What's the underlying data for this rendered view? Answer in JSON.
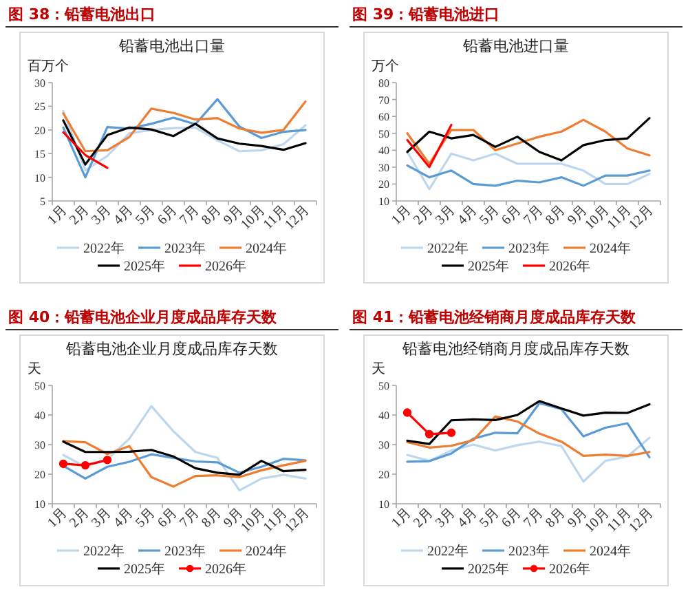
{
  "chart_data": [
    {
      "type": "line",
      "title": "图 38：铅蓄电池出口",
      "subtitle": "铅蓄电池出口量",
      "ylabel": "百万个",
      "categories": [
        "1月",
        "2月",
        "3月",
        "4月",
        "5月",
        "6月",
        "7月",
        "8月",
        "9月",
        "10月",
        "11月",
        "12月"
      ],
      "ylim": [
        5,
        30
      ],
      "yticks": [
        5,
        10,
        15,
        20,
        25,
        30
      ],
      "legend": "bottom",
      "series": [
        {
          "name": "2022年",
          "color": "#bdd7ee",
          "values": [
            24,
            11.5,
            14.5,
            19.3,
            20,
            20.4,
            20.5,
            17.8,
            15.5,
            15.7,
            17,
            21
          ]
        },
        {
          "name": "2023年",
          "color": "#5b9bd5",
          "values": [
            20.5,
            10,
            20.6,
            20.3,
            21.3,
            22.6,
            21.2,
            26.5,
            20.7,
            18.3,
            19.6,
            20
          ]
        },
        {
          "name": "2024年",
          "color": "#ed7d31",
          "values": [
            23.5,
            15.5,
            15.7,
            18.5,
            24.5,
            23.6,
            22.2,
            22.5,
            20.3,
            19.4,
            20,
            26
          ]
        },
        {
          "name": "2025年",
          "color": "#000000",
          "values": [
            22,
            12.7,
            18.9,
            20.5,
            20.1,
            18.7,
            21.3,
            18.2,
            17.1,
            16.6,
            15.8,
            17.2
          ]
        },
        {
          "name": "2026年",
          "color": "#ff0000",
          "values": [
            19.5,
            14.7,
            12,
            null,
            null,
            null,
            null,
            null,
            null,
            null,
            null,
            null
          ]
        }
      ]
    },
    {
      "type": "line",
      "title": "图 39：铅蓄电池进口",
      "subtitle": "铅蓄电池进口量",
      "ylabel": "万个",
      "categories": [
        "1月",
        "2月",
        "3月",
        "4月",
        "5月",
        "6月",
        "7月",
        "8月",
        "9月",
        "10月",
        "11月",
        "12月"
      ],
      "ylim": [
        10,
        80
      ],
      "yticks": [
        10,
        20,
        30,
        40,
        50,
        60,
        70,
        80
      ],
      "legend": "bottom",
      "series": [
        {
          "name": "2022年",
          "color": "#bdd7ee",
          "values": [
            39,
            17,
            38,
            34,
            38,
            32,
            32,
            32,
            28,
            20,
            20,
            26
          ]
        },
        {
          "name": "2023年",
          "color": "#5b9bd5",
          "values": [
            31,
            24,
            28,
            20,
            19,
            22,
            21,
            24,
            19,
            25,
            25,
            28
          ]
        },
        {
          "name": "2024年",
          "color": "#ed7d31",
          "values": [
            50,
            32,
            52,
            52,
            40,
            44,
            48,
            51,
            58,
            51,
            41,
            37
          ]
        },
        {
          "name": "2025年",
          "color": "#000000",
          "values": [
            39,
            51,
            47,
            49,
            42,
            48,
            39,
            34,
            43,
            46,
            47,
            59
          ]
        },
        {
          "name": "2026年",
          "color": "#ff0000",
          "values": [
            46,
            30,
            55,
            null,
            null,
            null,
            null,
            null,
            null,
            null,
            null,
            null
          ]
        }
      ]
    },
    {
      "type": "line",
      "title": "图 40：铅蓄电池企业月度成品库存天数",
      "subtitle": "铅蓄电池企业月度成品库存天数",
      "ylabel": "天",
      "categories": [
        "1月",
        "2月",
        "3月",
        "4月",
        "5月",
        "6月",
        "7月",
        "8月",
        "9月",
        "10月",
        "11月",
        "12月"
      ],
      "ylim": [
        10,
        50
      ],
      "yticks": [
        10,
        20,
        30,
        40,
        50
      ],
      "legend": "bottom",
      "series": [
        {
          "name": "2022年",
          "color": "#bdd7ee",
          "values": [
            26.5,
            22.5,
            25,
            32,
            43,
            34.5,
            27.5,
            25.5,
            14.5,
            18.5,
            19.8,
            18.5
          ]
        },
        {
          "name": "2023年",
          "color": "#5b9bd5",
          "values": [
            22.8,
            18.5,
            22.5,
            24.2,
            26.7,
            25.5,
            24.3,
            24,
            20.5,
            22.5,
            25.2,
            24.7
          ]
        },
        {
          "name": "2024年",
          "color": "#ed7d31",
          "values": [
            31.2,
            30.8,
            26.8,
            29.5,
            19,
            15.8,
            19.4,
            19.6,
            19,
            21.3,
            23,
            24.5
          ]
        },
        {
          "name": "2025年",
          "color": "#000000",
          "values": [
            31,
            27.5,
            27.5,
            27.6,
            28.2,
            26,
            22,
            20.5,
            19.8,
            24.5,
            21,
            21.5
          ]
        },
        {
          "name": "2026年",
          "color": "#ff0000",
          "marker": "circle",
          "values": [
            23.5,
            23,
            24.8,
            null,
            null,
            null,
            null,
            null,
            null,
            null,
            null,
            null
          ]
        }
      ]
    },
    {
      "type": "line",
      "title": "图 41：铅蓄电池经销商月度成品库存天数",
      "subtitle": "铅蓄电池经销商月度成品库存天数",
      "ylabel": "天",
      "categories": [
        "1月",
        "2月",
        "3月",
        "4月",
        "5月",
        "6月",
        "7月",
        "8月",
        "9月",
        "10月",
        "11月",
        "12月"
      ],
      "ylim": [
        10,
        50
      ],
      "yticks": [
        10,
        20,
        30,
        40,
        50
      ],
      "legend": "bottom",
      "series": [
        {
          "name": "2022年",
          "color": "#bdd7ee",
          "values": [
            26.5,
            24.5,
            28,
            30,
            28,
            29.8,
            31,
            29.5,
            17.5,
            24.5,
            26,
            32.3
          ]
        },
        {
          "name": "2023年",
          "color": "#5b9bd5",
          "values": [
            24.2,
            24.4,
            27,
            32,
            34,
            33.8,
            44,
            42,
            32.8,
            35.7,
            37.2,
            25.7
          ]
        },
        {
          "name": "2024年",
          "color": "#ed7d31",
          "values": [
            30.8,
            29,
            29.6,
            31.5,
            39.5,
            37.8,
            33.7,
            31,
            26.2,
            26.6,
            26.2,
            27.5
          ]
        },
        {
          "name": "2025年",
          "color": "#000000",
          "values": [
            31.3,
            30.2,
            38.2,
            38.5,
            38.3,
            40,
            44.7,
            42.2,
            39.8,
            40.8,
            40.7,
            43.6
          ]
        },
        {
          "name": "2026年",
          "color": "#ff0000",
          "marker": "circle",
          "values": [
            40.8,
            33.5,
            34,
            null,
            null,
            null,
            null,
            null,
            null,
            null,
            null,
            null
          ]
        }
      ]
    }
  ]
}
